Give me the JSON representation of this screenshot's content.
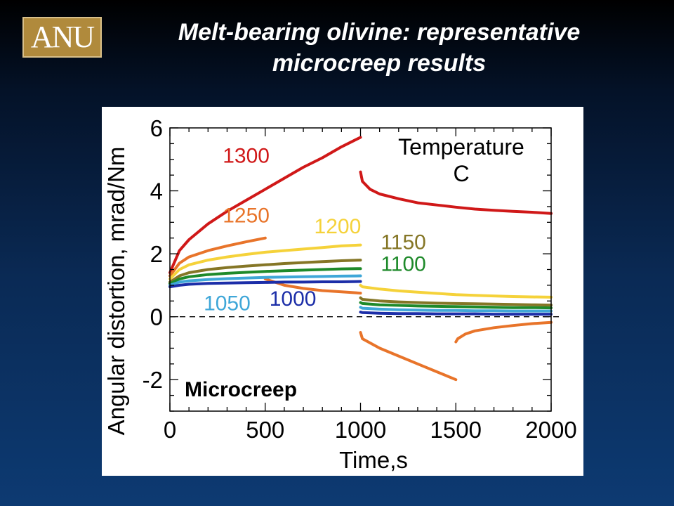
{
  "logo_text": "ANU",
  "title_line1": "Melt-bearing olivine: representative",
  "title_line2": "microcreep results",
  "chart_data": {
    "type": "line",
    "title": "",
    "xlabel": "Time,s",
    "ylabel": "Angular distortion, mrad/Nm",
    "xlim": [
      0,
      2000
    ],
    "ylim": [
      -3,
      6
    ],
    "xticks": [
      0,
      500,
      1000,
      1500,
      2000
    ],
    "yticks": [
      -2,
      0,
      2,
      4,
      6
    ],
    "legend_title": "Temperature",
    "legend_unit": "C",
    "annotation": "Microcreep",
    "zero_line": "dashed",
    "series": [
      {
        "name": "1300",
        "color": "#d01818",
        "segments": [
          {
            "x": [
              0,
              50,
              100,
              200,
              300,
              400,
              500,
              600,
              700,
              800,
              900,
              1000
            ],
            "y": [
              1.4,
              2.1,
              2.45,
              2.95,
              3.35,
              3.7,
              4.05,
              4.4,
              4.75,
              5.05,
              5.4,
              5.7
            ]
          },
          {
            "x": [
              1000,
              1010,
              1050,
              1100,
              1200,
              1300,
              1400,
              1500,
              1600,
              1700,
              1800,
              1900,
              2000
            ],
            "y": [
              4.6,
              4.3,
              4.05,
              3.9,
              3.75,
              3.62,
              3.55,
              3.48,
              3.42,
              3.38,
              3.35,
              3.32,
              3.28
            ]
          }
        ]
      },
      {
        "name": "1250",
        "color": "#e8742a",
        "segments": [
          {
            "x": [
              0,
              50,
              100,
              200,
              300,
              400,
              500
            ],
            "y": [
              1.3,
              1.7,
              1.9,
              2.1,
              2.25,
              2.38,
              2.5
            ]
          },
          {
            "x": [
              500,
              600,
              700,
              800,
              900,
              1000
            ],
            "y": [
              1.2,
              1.0,
              0.9,
              0.83,
              0.79,
              0.75
            ]
          },
          {
            "x": [
              1000,
              1010,
              1100,
              1200,
              1300,
              1400,
              1500
            ],
            "y": [
              -0.5,
              -0.7,
              -1.0,
              -1.25,
              -1.5,
              -1.75,
              -2.0
            ]
          },
          {
            "x": [
              1500,
              1510,
              1550,
              1600,
              1700,
              1800,
              1900,
              2000
            ],
            "y": [
              -0.8,
              -0.7,
              -0.55,
              -0.45,
              -0.35,
              -0.28,
              -0.22,
              -0.18
            ]
          }
        ]
      },
      {
        "name": "1200",
        "color": "#f5d23a",
        "segments": [
          {
            "x": [
              0,
              50,
              100,
              200,
              300,
              400,
              500,
              600,
              700,
              800,
              900,
              1000
            ],
            "y": [
              1.2,
              1.5,
              1.65,
              1.8,
              1.9,
              1.98,
              2.05,
              2.1,
              2.15,
              2.2,
              2.25,
              2.28
            ]
          },
          {
            "x": [
              1000,
              1010,
              1100,
              1200,
              1300,
              1400,
              1500,
              1600,
              1700,
              1800,
              1900,
              2000
            ],
            "y": [
              1.0,
              0.95,
              0.88,
              0.82,
              0.78,
              0.74,
              0.7,
              0.68,
              0.66,
              0.64,
              0.63,
              0.62
            ]
          }
        ]
      },
      {
        "name": "1150",
        "color": "#857626",
        "segments": [
          {
            "x": [
              0,
              50,
              100,
              200,
              300,
              400,
              500,
              600,
              700,
              800,
              900,
              1000
            ],
            "y": [
              1.1,
              1.3,
              1.4,
              1.5,
              1.56,
              1.61,
              1.65,
              1.69,
              1.72,
              1.75,
              1.78,
              1.8
            ]
          },
          {
            "x": [
              1000,
              1010,
              1100,
              1200,
              1300,
              1400,
              1500,
              1600,
              1700,
              1800,
              1900,
              2000
            ],
            "y": [
              0.6,
              0.55,
              0.5,
              0.47,
              0.45,
              0.43,
              0.42,
              0.41,
              0.4,
              0.39,
              0.38,
              0.37
            ]
          }
        ]
      },
      {
        "name": "1100",
        "color": "#1e8a2a",
        "segments": [
          {
            "x": [
              0,
              50,
              100,
              200,
              300,
              400,
              500,
              600,
              700,
              800,
              900,
              1000
            ],
            "y": [
              1.05,
              1.2,
              1.27,
              1.34,
              1.38,
              1.41,
              1.44,
              1.46,
              1.48,
              1.5,
              1.52,
              1.53
            ]
          },
          {
            "x": [
              1000,
              1010,
              1100,
              1200,
              1300,
              1400,
              1500,
              1600,
              1700,
              1800,
              1900,
              2000
            ],
            "y": [
              0.45,
              0.42,
              0.38,
              0.36,
              0.34,
              0.33,
              0.32,
              0.31,
              0.3,
              0.29,
              0.29,
              0.28
            ]
          }
        ]
      },
      {
        "name": "1050",
        "color": "#3fa7d8",
        "segments": [
          {
            "x": [
              0,
              50,
              100,
              200,
              300,
              400,
              500,
              600,
              700,
              800,
              900,
              1000
            ],
            "y": [
              1.0,
              1.1,
              1.14,
              1.18,
              1.21,
              1.23,
              1.25,
              1.26,
              1.27,
              1.28,
              1.29,
              1.3
            ]
          },
          {
            "x": [
              1000,
              1010,
              1100,
              1200,
              1300,
              1400,
              1500,
              1600,
              1700,
              1800,
              1900,
              2000
            ],
            "y": [
              0.3,
              0.27,
              0.24,
              0.22,
              0.21,
              0.2,
              0.2,
              0.19,
              0.19,
              0.18,
              0.18,
              0.18
            ]
          }
        ]
      },
      {
        "name": "1000",
        "color": "#1c2ea8",
        "segments": [
          {
            "x": [
              0,
              50,
              100,
              200,
              300,
              400,
              500,
              600,
              700,
              800,
              900,
              1000
            ],
            "y": [
              0.95,
              1.0,
              1.03,
              1.06,
              1.07,
              1.08,
              1.09,
              1.1,
              1.1,
              1.11,
              1.11,
              1.12
            ]
          },
          {
            "x": [
              1000,
              1010,
              1100,
              1200,
              1300,
              1400,
              1500,
              1600,
              1700,
              1800,
              1900,
              2000
            ],
            "y": [
              0.15,
              0.13,
              0.11,
              0.1,
              0.1,
              0.09,
              0.09,
              0.09,
              0.08,
              0.08,
              0.08,
              0.08
            ]
          }
        ]
      }
    ],
    "series_labels": [
      {
        "name": "1300",
        "x": 400,
        "y": 4.9
      },
      {
        "name": "1250",
        "x": 400,
        "y": 3.0
      },
      {
        "name": "1200",
        "x": 880,
        "y": 2.65
      },
      {
        "name": "1150",
        "x": 1225,
        "y": 2.15
      },
      {
        "name": "1100",
        "x": 1225,
        "y": 1.45
      },
      {
        "name": "1050",
        "x": 300,
        "y": 0.2
      },
      {
        "name": "1000",
        "x": 645,
        "y": 0.35
      }
    ]
  }
}
